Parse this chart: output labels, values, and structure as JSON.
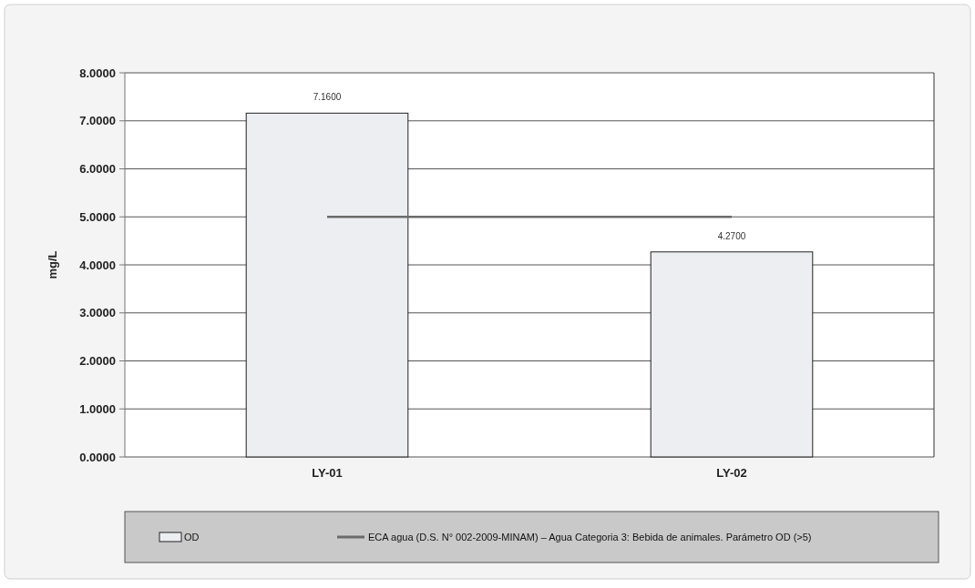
{
  "chart_data": {
    "type": "bar",
    "ylabel": "mg/L",
    "categories": [
      "LY-01",
      "LY-02"
    ],
    "series": [
      {
        "name": "OD",
        "color": "#eceef2",
        "values": [
          7.16,
          4.27
        ],
        "value_labels": [
          "7.1600",
          "4.2700"
        ]
      },
      {
        "name": "ECA agua (D.S. N° 002-2009-MINAM)  – Agua Categoria 3: Bebida de animales. Parámetro  OD (>5)",
        "type": "line",
        "color": "#6b6b6b",
        "values": [
          5,
          5
        ]
      }
    ],
    "ylim": [
      0,
      8
    ],
    "yticks": [
      {
        "value": 0,
        "label": "0.0000"
      },
      {
        "value": 1,
        "label": "1.0000"
      },
      {
        "value": 2,
        "label": "2.0000"
      },
      {
        "value": 3,
        "label": "3.0000"
      },
      {
        "value": 4,
        "label": "4.0000"
      },
      {
        "value": 5,
        "label": "5.0000"
      },
      {
        "value": 6,
        "label": "6.0000"
      },
      {
        "value": 7,
        "label": "7.0000"
      },
      {
        "value": 8,
        "label": "8.0000"
      }
    ],
    "grid": "y",
    "legend": "bottom"
  }
}
